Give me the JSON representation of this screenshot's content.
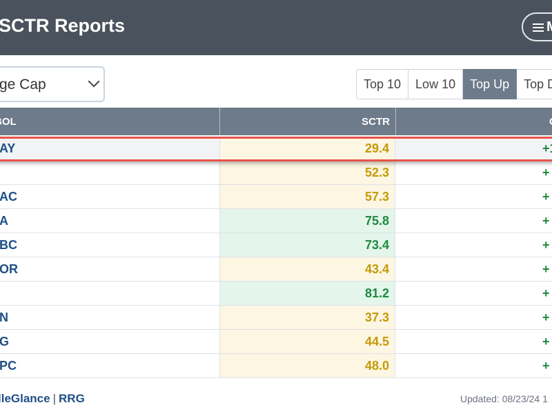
{
  "header": {
    "title": "SCTR Reports",
    "menu_label": "M"
  },
  "controls": {
    "universe_select": {
      "value": "rge Cap"
    },
    "filter_buttons": [
      {
        "label": "Top 10",
        "active": false
      },
      {
        "label": "Low 10",
        "active": false
      },
      {
        "label": "Top Up",
        "active": true
      },
      {
        "label": "Top Do",
        "active": false
      }
    ]
  },
  "table": {
    "columns": [
      "BOL",
      "SCTR",
      "C"
    ],
    "rows": [
      {
        "symbol": "AY",
        "sctr": "29.4",
        "change": "+1",
        "sctr_color": "yellow"
      },
      {
        "symbol": "",
        "sctr": "52.3",
        "change": "+",
        "sctr_color": "yellow"
      },
      {
        "symbol": "AC",
        "sctr": "57.3",
        "change": "+",
        "sctr_color": "yellow"
      },
      {
        "symbol": "A",
        "sctr": "75.8",
        "change": "+",
        "sctr_color": "green"
      },
      {
        "symbol": "BC",
        "sctr": "73.4",
        "change": "+",
        "sctr_color": "green"
      },
      {
        "symbol": "OR",
        "sctr": "43.4",
        "change": "+",
        "sctr_color": "yellow"
      },
      {
        "symbol": "",
        "sctr": "81.2",
        "change": "+",
        "sctr_color": "green"
      },
      {
        "symbol": "N",
        "sctr": "37.3",
        "change": "+",
        "sctr_color": "yellow"
      },
      {
        "symbol": "G",
        "sctr": "44.5",
        "change": "+",
        "sctr_color": "yellow"
      },
      {
        "symbol": "PC",
        "sctr": "48.0",
        "change": "+",
        "sctr_color": "yellow"
      }
    ]
  },
  "footer": {
    "link1": "lleGlance",
    "separator": "|",
    "link2": "RRG",
    "updated": "Updated: 08/23/24 1"
  },
  "colors": {
    "header_bg": "#4a535d",
    "table_header_bg": "#6d7b8a",
    "highlight": "#e9524a",
    "link": "#1f4f86",
    "positive": "#1d8a3e",
    "sctr_yellow": "#c49a06"
  }
}
